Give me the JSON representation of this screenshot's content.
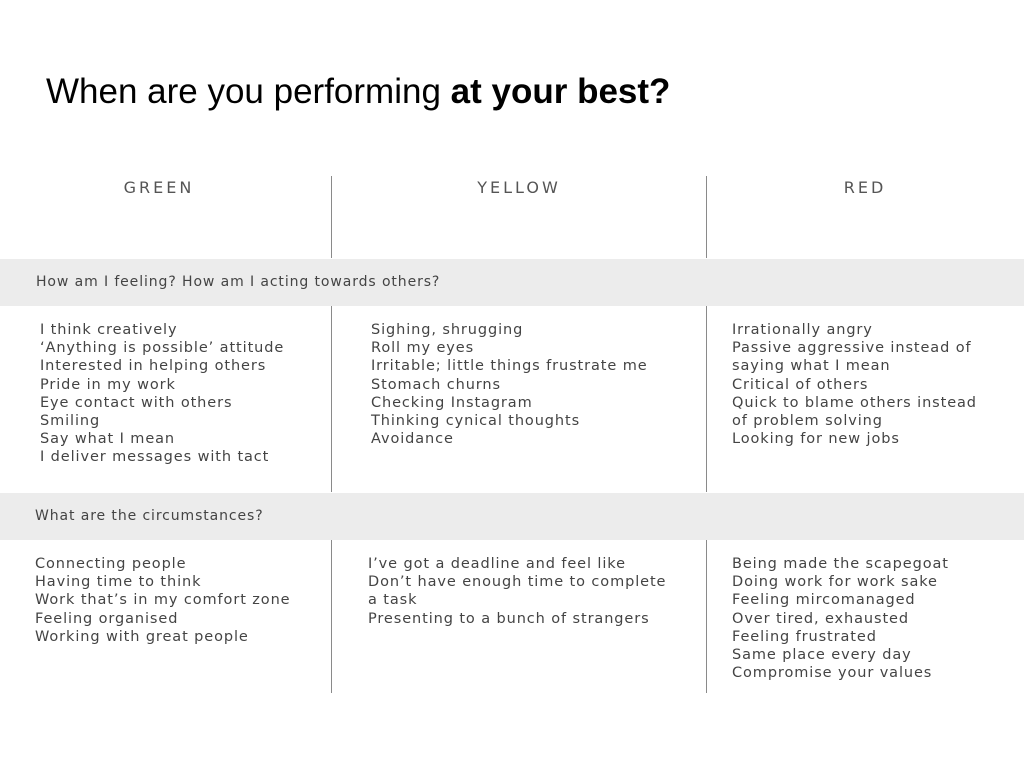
{
  "title": {
    "prefix": "When are you performing",
    "bold": "at your best?"
  },
  "columns": {
    "green": "GREEN",
    "yellow": "YELLOW",
    "red": "RED"
  },
  "sections": [
    {
      "heading": "How am I feeling? How am I acting towards others?",
      "green": [
        "I think creatively",
        "‘Anything is possible’ attitude",
        "Interested in helping others",
        "Pride in my work",
        "Eye contact with others",
        "Smiling",
        "Say what I mean",
        "I deliver messages with tact"
      ],
      "yellow": [
        "Sighing, shrugging",
        "Roll my eyes",
        "Irritable; little things frustrate me",
        "Stomach churns",
        "Checking Instagram",
        "Thinking cynical thoughts",
        "Avoidance"
      ],
      "red": [
        "Irrationally angry",
        "Passive aggressive instead of",
        "saying what I mean",
        "Critical of others",
        "Quick to blame others instead",
        "of problem solving",
        "Looking for new jobs"
      ]
    },
    {
      "heading": "What are the circumstances?",
      "green": [
        "Connecting people",
        "Having time to think",
        "Work that’s in my comfort zone",
        "Feeling organised",
        "Working with great people"
      ],
      "yellow": [
        "I’ve got a deadline and feel like",
        "Don’t have enough time to complete",
        "a task",
        "Presenting to a bunch of strangers"
      ],
      "red": [
        "Being made the scapegoat",
        "Doing work for work sake",
        "Feeling mircomanaged",
        "Over tired, exhausted",
        "Feeling frustrated",
        "Same place every day",
        "Compromise your values"
      ]
    }
  ]
}
